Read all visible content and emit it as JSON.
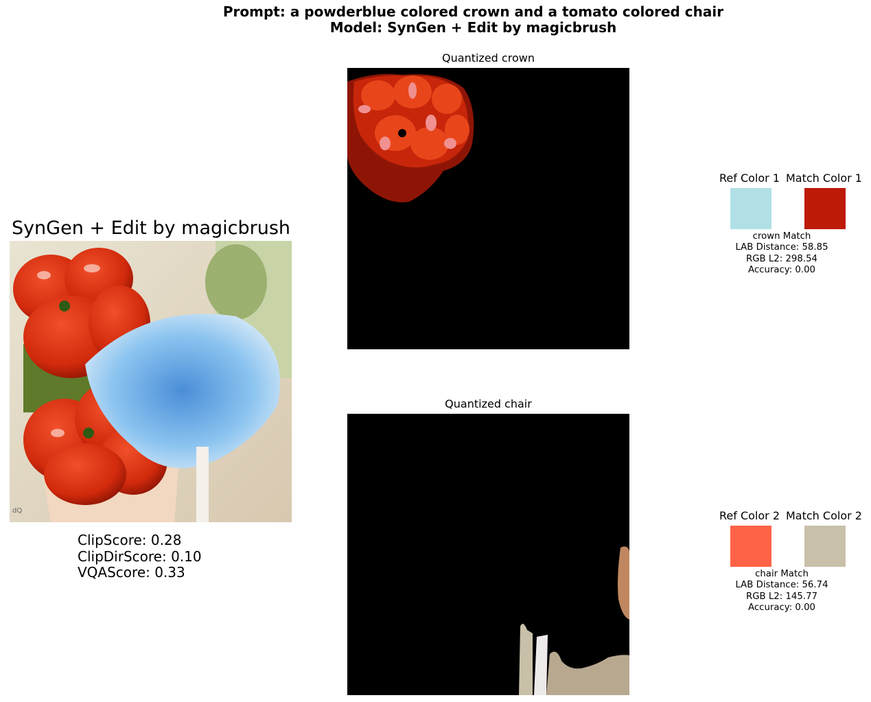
{
  "figure": {
    "suptitle_line1": "Prompt: a powderblue colored crown and a tomato colored chair",
    "suptitle_line2": "Model: SynGen + Edit by magicbrush"
  },
  "main_panel": {
    "title": "SynGen + Edit by magicbrush",
    "scores": [
      "ClipScore: 0.28",
      "ClipDirScore: 0.10",
      "VQAScore: 0.33"
    ]
  },
  "quantized": [
    {
      "title": "Quantized crown"
    },
    {
      "title": "Quantized chair"
    }
  ],
  "color_match": [
    {
      "ref_title": "Ref Color 1",
      "match_title": "Match Color 1",
      "ref_color": "#B0E0E6",
      "match_color": "#BD1A08",
      "metrics": [
        "crown Match",
        "LAB Distance: 58.85",
        "RGB L2: 298.54",
        "Accuracy: 0.00"
      ]
    },
    {
      "ref_title": "Ref Color 2",
      "match_title": "Match Color 2",
      "ref_color": "#FF6347",
      "match_color": "#C8C0A8",
      "metrics": [
        "chair Match",
        "LAB Distance: 56.74",
        "RGB L2: 145.77",
        "Accuracy: 0.00"
      ]
    }
  ]
}
